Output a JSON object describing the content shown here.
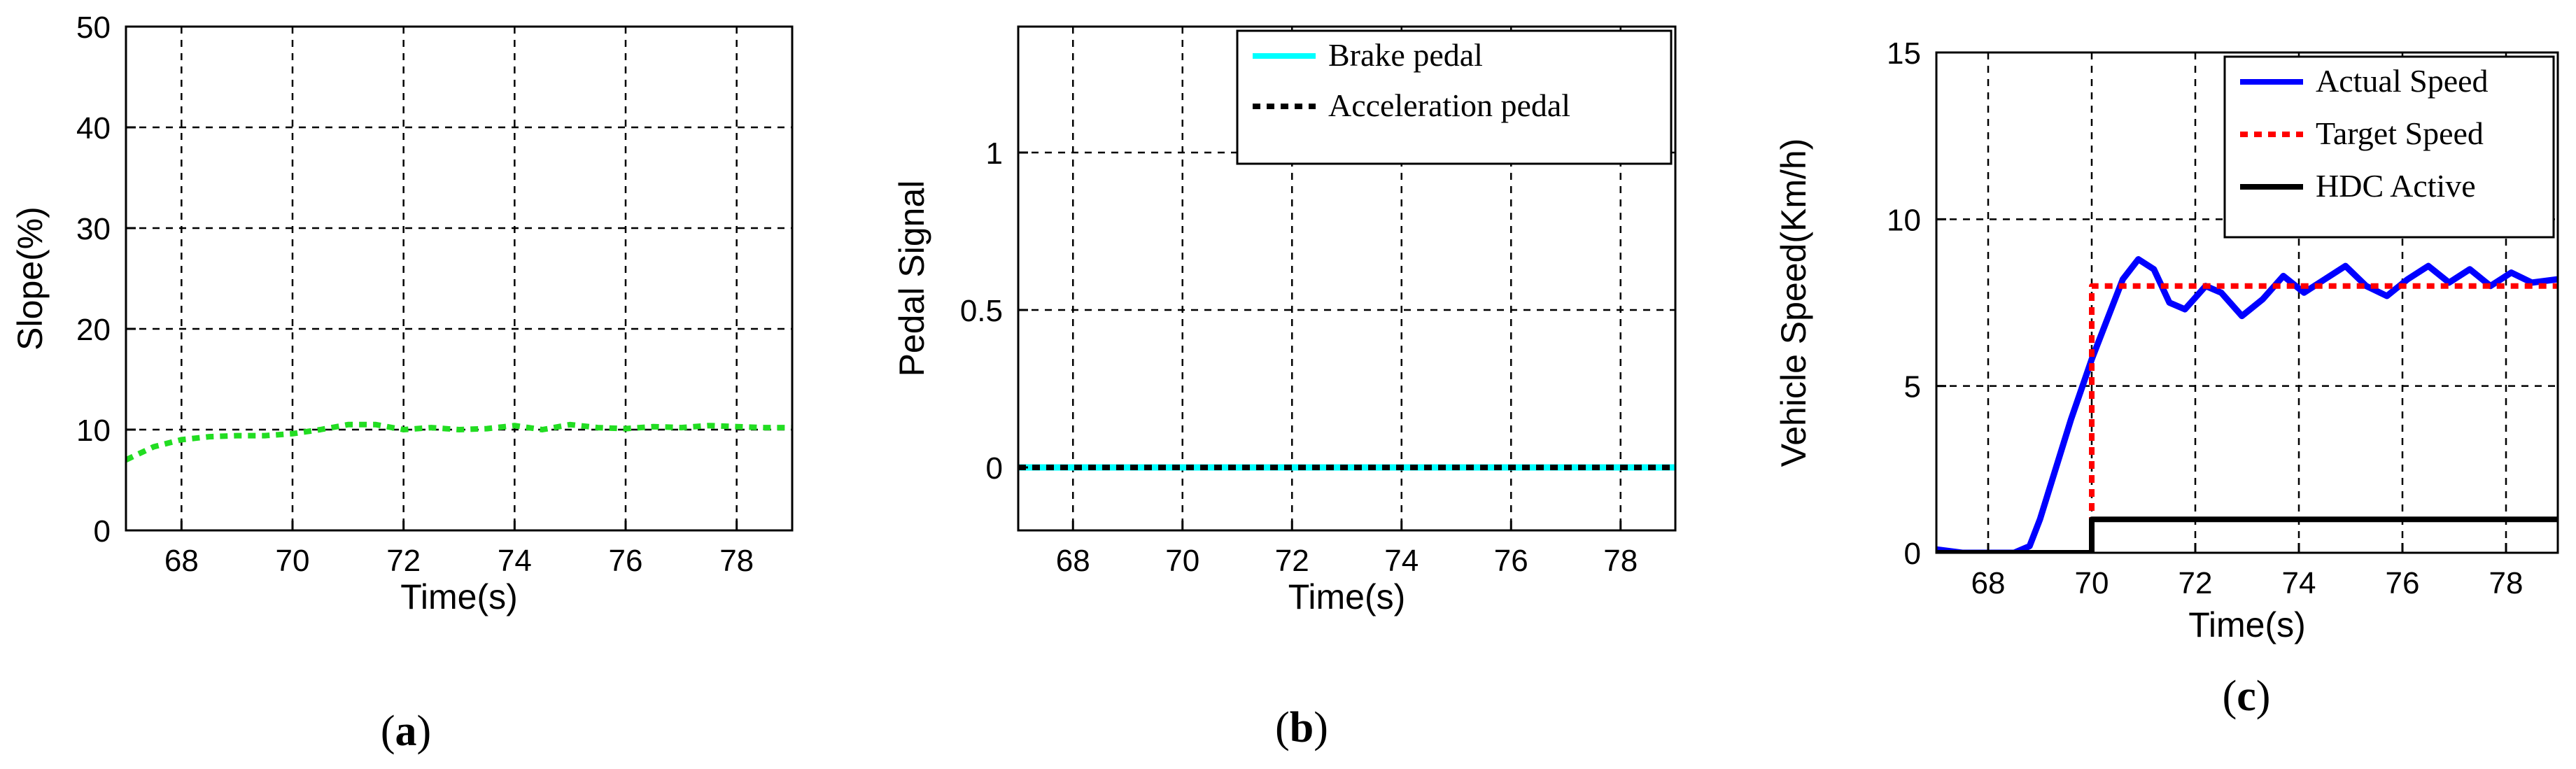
{
  "chart_data": [
    {
      "id": "a",
      "type": "line",
      "panel_label": "(a)",
      "panel_letter": "a",
      "xlabel": "Time(s)",
      "ylabel": "Slope(%)",
      "xlim": [
        67,
        79
      ],
      "ylim": [
        0,
        50
      ],
      "xticks": [
        68,
        70,
        72,
        74,
        76,
        78
      ],
      "yticks": [
        0,
        10,
        20,
        30,
        40,
        50
      ],
      "grid": true,
      "series": [
        {
          "color": "#22dd22",
          "style": "dotted",
          "x": [
            67.0,
            67.5,
            68.0,
            68.5,
            69.0,
            69.5,
            70.0,
            70.5,
            71.0,
            71.5,
            72.0,
            72.5,
            73.0,
            73.5,
            74.0,
            74.5,
            75.0,
            75.5,
            76.0,
            76.5,
            77.0,
            77.5,
            78.0,
            78.5,
            79.0
          ],
          "y": [
            7.0,
            8.3,
            9.0,
            9.3,
            9.4,
            9.4,
            9.6,
            10.0,
            10.5,
            10.5,
            10.0,
            10.2,
            10.0,
            10.1,
            10.4,
            10.0,
            10.5,
            10.2,
            10.1,
            10.3,
            10.2,
            10.4,
            10.3,
            10.2,
            10.2
          ]
        }
      ]
    },
    {
      "id": "b",
      "type": "line",
      "panel_label": "(b)",
      "panel_letter": "b",
      "xlabel": "Time(s)",
      "ylabel": "Pedal Signal",
      "xlim": [
        67,
        79
      ],
      "ylim": [
        -0.2,
        1.4
      ],
      "xticks": [
        68,
        70,
        72,
        74,
        76,
        78
      ],
      "yticks": [
        0,
        0.5,
        1
      ],
      "grid": true,
      "legend": "top-right",
      "series": [
        {
          "name": "Brake pedal",
          "color": "#00ffff",
          "style": "solid",
          "x": [
            67,
            79
          ],
          "y": [
            0,
            0
          ]
        },
        {
          "name": "Acceleration pedal",
          "color": "#000000",
          "style": "dotted",
          "x": [
            67,
            79
          ],
          "y": [
            0,
            0
          ]
        }
      ]
    },
    {
      "id": "c",
      "type": "line",
      "panel_label": "(c)",
      "panel_letter": "c",
      "xlabel": "Time(s)",
      "ylabel": "Vehicle Speed(Km/h)",
      "xlim": [
        67,
        79
      ],
      "ylim": [
        0,
        15
      ],
      "xticks": [
        68,
        70,
        72,
        74,
        76,
        78
      ],
      "yticks": [
        0,
        5,
        10,
        15
      ],
      "grid": true,
      "legend": "top-right",
      "series": [
        {
          "name": "Actual Speed",
          "color": "#0000ff",
          "style": "solid",
          "x": [
            67.0,
            67.5,
            68.0,
            68.5,
            68.8,
            69.0,
            69.3,
            69.6,
            70.0,
            70.3,
            70.6,
            70.9,
            71.2,
            71.5,
            71.8,
            72.2,
            72.5,
            72.9,
            73.3,
            73.7,
            74.1,
            74.5,
            74.9,
            75.3,
            75.7,
            76.1,
            76.5,
            76.9,
            77.3,
            77.7,
            78.1,
            78.5,
            79.0
          ],
          "y": [
            0.1,
            0.0,
            0.0,
            0.0,
            0.2,
            1.0,
            2.5,
            4.0,
            5.8,
            7.0,
            8.2,
            8.8,
            8.5,
            7.5,
            7.3,
            8.0,
            7.8,
            7.1,
            7.6,
            8.3,
            7.8,
            8.2,
            8.6,
            8.0,
            7.7,
            8.2,
            8.6,
            8.1,
            8.5,
            8.0,
            8.4,
            8.1,
            8.2
          ]
        },
        {
          "name": "Target Speed",
          "color": "#ff0000",
          "style": "dotted",
          "x": [
            70.0,
            70.0,
            79.0
          ],
          "y": [
            0.0,
            8.0,
            8.0
          ]
        },
        {
          "name": "HDC Active",
          "color": "#000000",
          "style": "solid",
          "x": [
            67.0,
            70.0,
            70.0,
            79.0
          ],
          "y": [
            0.0,
            0.0,
            1.0,
            1.0
          ]
        }
      ]
    }
  ]
}
